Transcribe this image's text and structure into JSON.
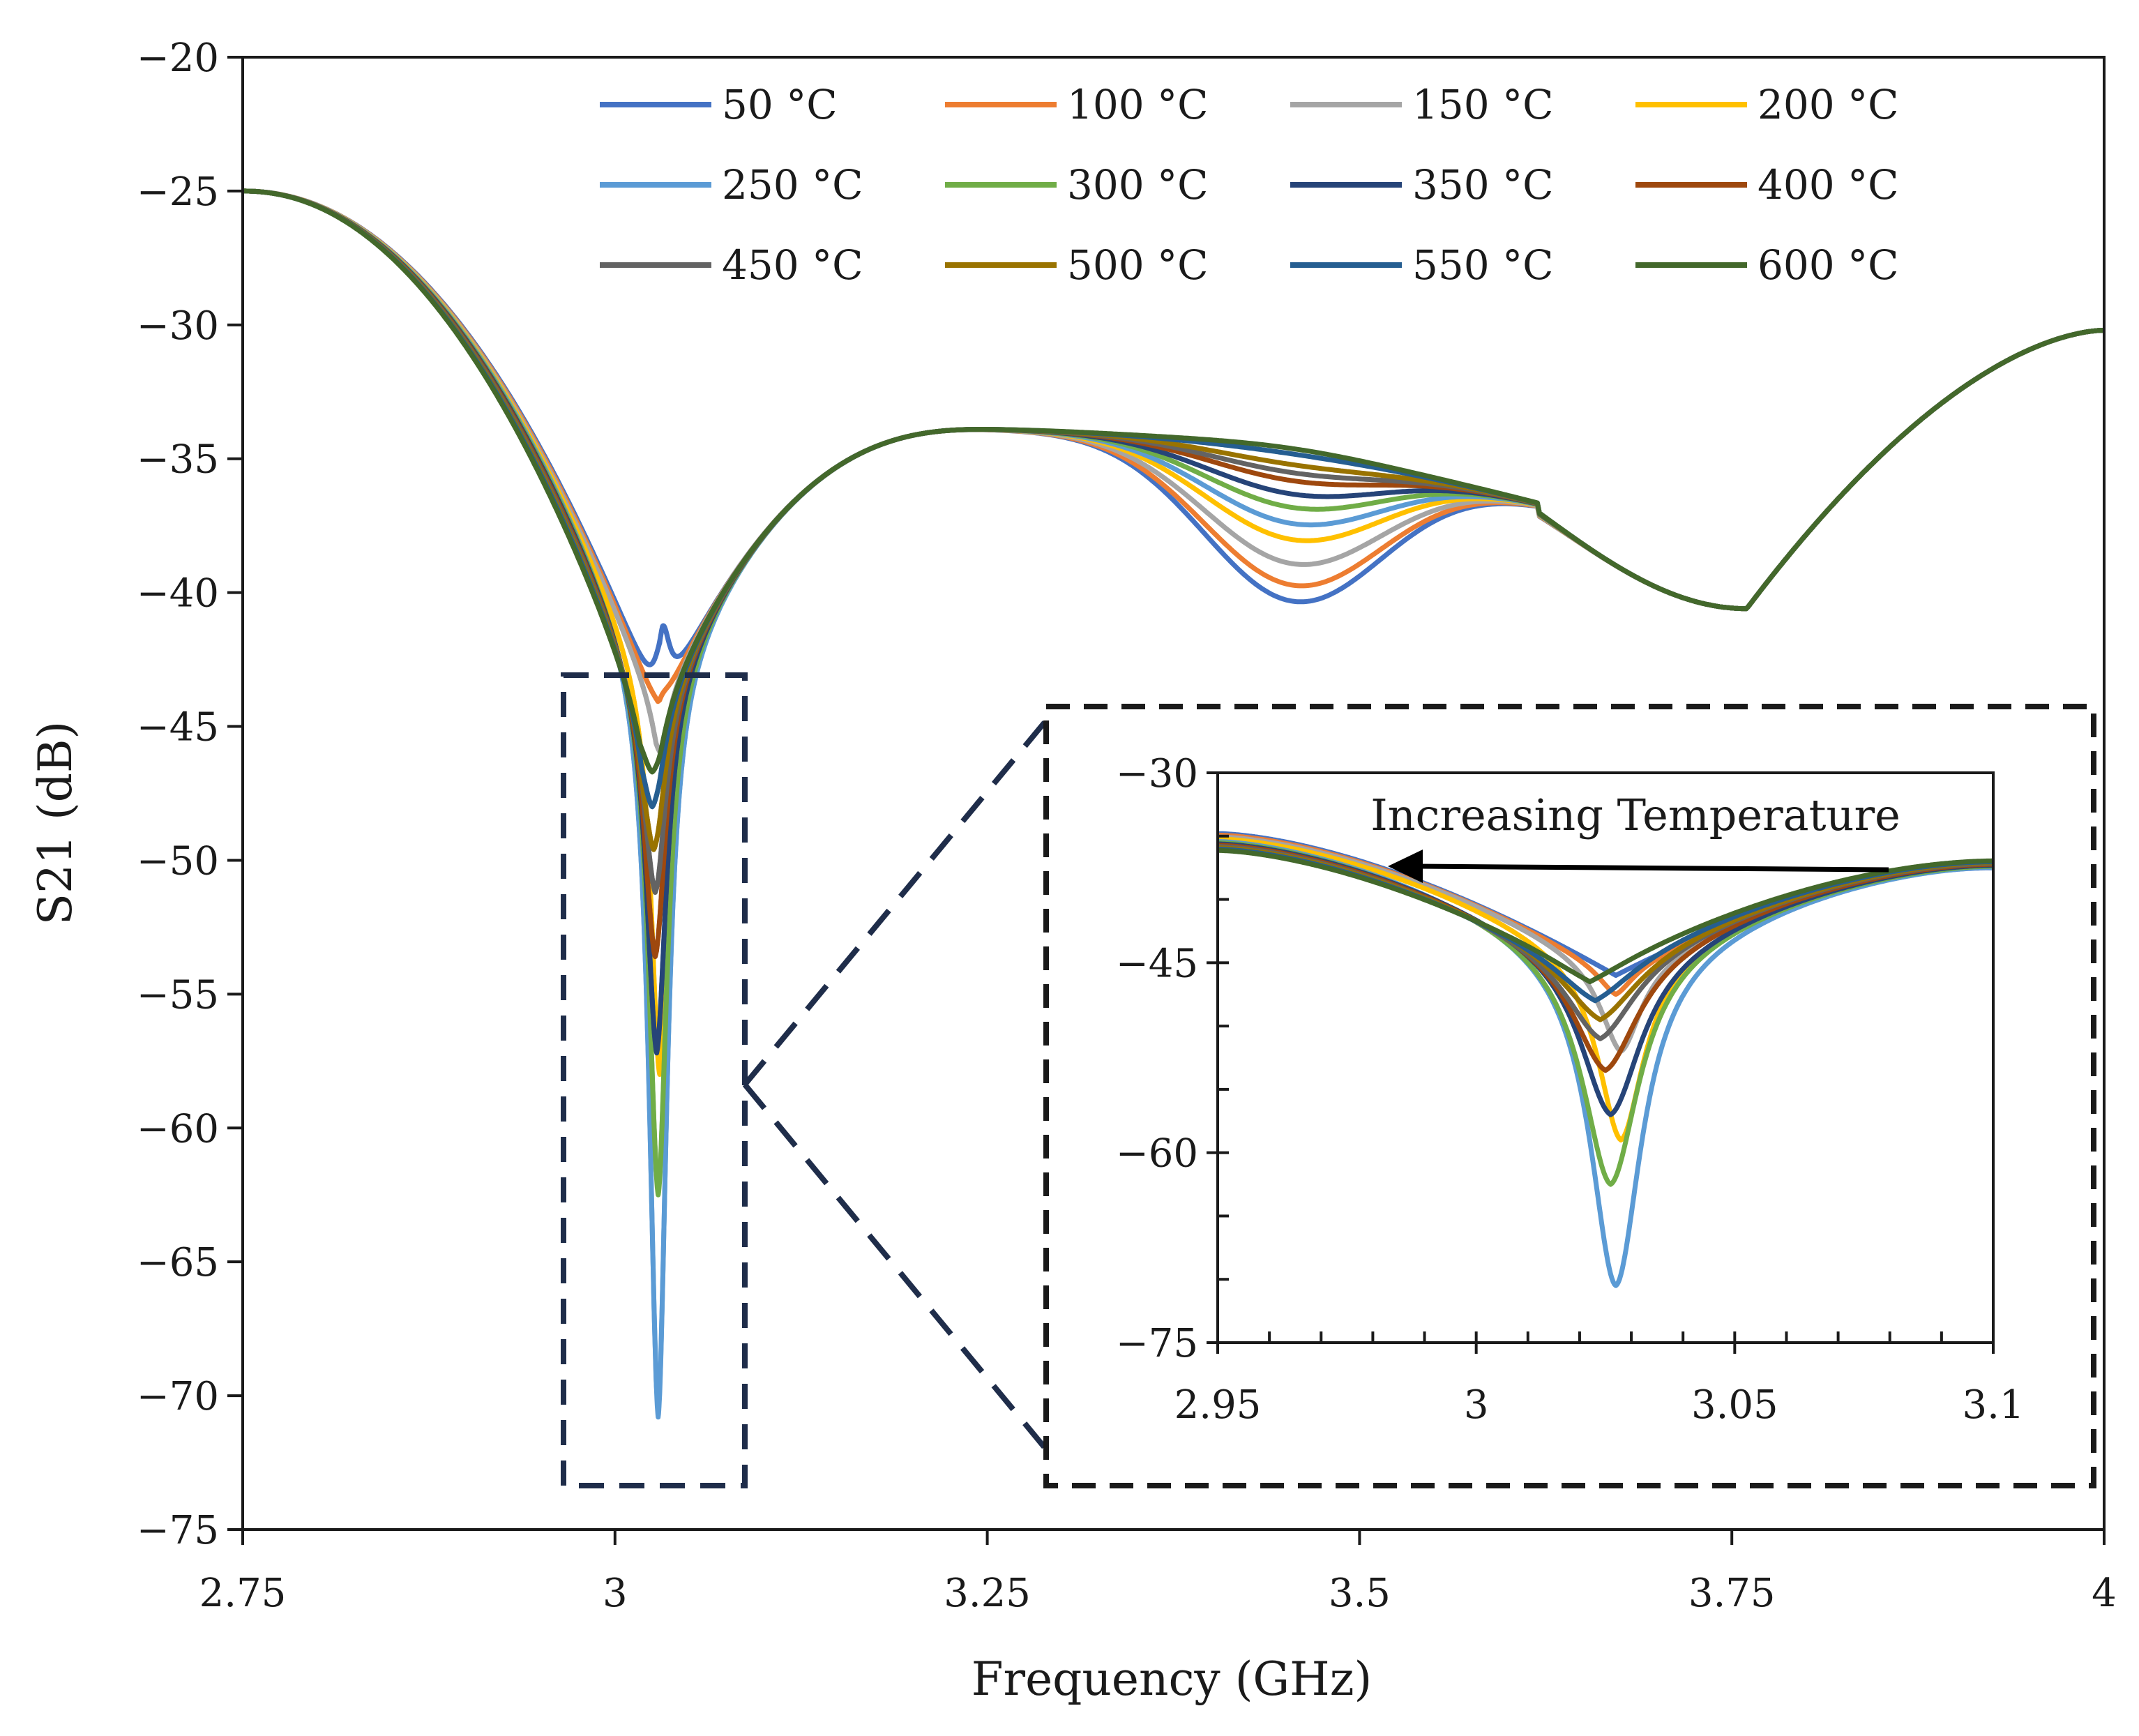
{
  "chart_data": [
    {
      "type": "line",
      "name": "main",
      "title": "",
      "xlabel": "Frequency (GHz)",
      "ylabel": "S21 (dB)",
      "xlim": [
        2.75,
        4
      ],
      "ylim": [
        -75,
        -20
      ],
      "xticks": [
        2.75,
        3,
        3.25,
        3.5,
        3.75,
        4
      ],
      "xtick_labels": [
        "2.75",
        "3",
        "3.25",
        "3.5",
        "3.75",
        "4"
      ],
      "yticks": [
        -20,
        -25,
        -30,
        -35,
        -40,
        -45,
        -50,
        -55,
        -60,
        -65,
        -70,
        -75
      ],
      "ytick_labels": [
        "−20",
        "−25",
        "−30",
        "−35",
        "−40",
        "−45",
        "−50",
        "−55",
        "−60",
        "−65",
        "−70",
        "−75"
      ],
      "grid": false,
      "legend_position": "top",
      "series": [
        {
          "name": "50 °C",
          "color": "#4472C4",
          "dip1": -41.5,
          "dip1_f": 3.032,
          "dip2": -40.7,
          "mid": -40.8
        },
        {
          "name": "100 °C",
          "color": "#ED7D31",
          "dip1": -44.0,
          "dip1_f": 3.031,
          "dip2": -40.1,
          "mid": -40.8
        },
        {
          "name": "150 °C",
          "color": "#A5A5A5",
          "dip1": -46.0,
          "dip1_f": 3.031,
          "dip2": -39.3,
          "mid": -40.7
        },
        {
          "name": "200 °C",
          "color": "#FFC000",
          "dip1": -58.0,
          "dip1_f": 3.03,
          "dip2": -38.4,
          "mid": -40.7
        },
        {
          "name": "250 °C",
          "color": "#5B9BD5",
          "dip1": -70.8,
          "dip1_f": 3.029,
          "dip2": -37.8,
          "mid": -40.6
        },
        {
          "name": "300 °C",
          "color": "#70AD47",
          "dip1": -62.5,
          "dip1_f": 3.029,
          "dip2": -37.2,
          "mid": -40.6
        },
        {
          "name": "350 °C",
          "color": "#264478",
          "dip1": -57.2,
          "dip1_f": 3.028,
          "dip2": -36.7,
          "mid": -40.6
        },
        {
          "name": "400 °C",
          "color": "#9E480E",
          "dip1": -53.6,
          "dip1_f": 3.027,
          "dip2": -36.2,
          "mid": -40.6
        },
        {
          "name": "450 °C",
          "color": "#636363",
          "dip1": -51.2,
          "dip1_f": 3.027,
          "dip2": -35.9,
          "mid": -40.6
        },
        {
          "name": "500 °C",
          "color": "#997300",
          "dip1": -49.6,
          "dip1_f": 3.026,
          "dip2": -35.6,
          "mid": -40.6
        },
        {
          "name": "550 °C",
          "color": "#255E91",
          "dip1": -48.0,
          "dip1_f": 3.025,
          "dip2": -35.2,
          "mid": -40.6
        },
        {
          "name": "600 °C",
          "color": "#43682B",
          "dip1": -46.7,
          "dip1_f": 3.025,
          "dip2": -35.0,
          "mid": -40.6
        }
      ]
    },
    {
      "type": "line",
      "name": "inset",
      "title": "",
      "xlim": [
        2.95,
        3.1
      ],
      "ylim": [
        -75,
        -30
      ],
      "xticks": [
        2.95,
        3,
        3.05,
        3.1
      ],
      "xtick_labels": [
        "2.95",
        "3",
        "3.05",
        "3.1"
      ],
      "yticks": [
        -30,
        -45,
        -60,
        -75
      ],
      "ytick_labels": [
        "−30",
        "−45",
        "−60",
        "−75"
      ],
      "annotation": "Increasing Temperature",
      "series": [
        {
          "name": "50 °C",
          "color": "#4472C4",
          "dip": -46.0,
          "f": 3.027
        },
        {
          "name": "100 °C",
          "color": "#ED7D31",
          "dip": -47.5,
          "f": 3.027
        },
        {
          "name": "150 °C",
          "color": "#A5A5A5",
          "dip": -52.0,
          "f": 3.028
        },
        {
          "name": "200 °C",
          "color": "#FFC000",
          "dip": -59.0,
          "f": 3.028
        },
        {
          "name": "250 °C",
          "color": "#5B9BD5",
          "dip": -70.5,
          "f": 3.027
        },
        {
          "name": "300 °C",
          "color": "#70AD47",
          "dip": -62.5,
          "f": 3.026
        },
        {
          "name": "350 °C",
          "color": "#264478",
          "dip": -57.0,
          "f": 3.026
        },
        {
          "name": "400 °C",
          "color": "#9E480E",
          "dip": -53.5,
          "f": 3.025
        },
        {
          "name": "450 °C",
          "color": "#636363",
          "dip": -51.0,
          "f": 3.024
        },
        {
          "name": "500 °C",
          "color": "#997300",
          "dip": -49.5,
          "f": 3.024
        },
        {
          "name": "550 °C",
          "color": "#255E91",
          "dip": -48.0,
          "f": 3.023
        },
        {
          "name": "600 °C",
          "color": "#43682B",
          "dip": -46.5,
          "f": 3.022
        }
      ]
    }
  ]
}
